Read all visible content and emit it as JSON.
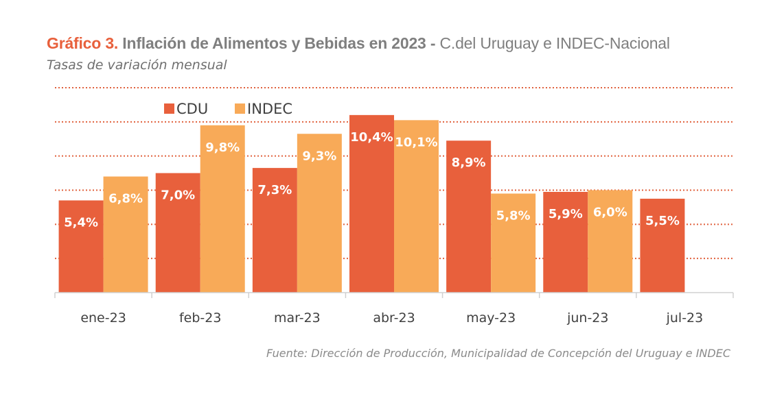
{
  "header": {
    "title_lead": "Gráfico 3.",
    "title_main": " Inflación de Alimentos y Bebidas en 2023 - ",
    "title_rest": "C.del Uruguay e INDEC-Nacional",
    "subtitle": "Tasas de variación mensual"
  },
  "footer": {
    "source": "Fuente: Dirección de Producción, Municipalidad de Concepción del Uruguay e INDEC"
  },
  "colors": {
    "CDU": "#e8603c",
    "INDEC": "#f8aa58",
    "grid": "#e0603c",
    "axis": "#d0d0d0"
  },
  "chart_data": {
    "type": "bar",
    "title": "Gráfico 3. Inflación de Alimentos y Bebidas en 2023 - C.del Uruguay e INDEC-Nacional",
    "subtitle": "Tasas de variación mensual",
    "xlabel": "",
    "ylabel": "",
    "ylim": [
      0,
      12
    ],
    "grid": true,
    "legend": "top-left",
    "categories": [
      "ene-23",
      "feb-23",
      "mar-23",
      "abr-23",
      "may-23",
      "jun-23",
      "jul-23"
    ],
    "series": [
      {
        "name": "CDU",
        "values": [
          5.4,
          7.0,
          7.3,
          10.4,
          8.9,
          5.9,
          5.5
        ],
        "labels": [
          "5,4%",
          "7,0%",
          "7,3%",
          "10,4%",
          "8,9%",
          "5,9%",
          "5,5%"
        ]
      },
      {
        "name": "INDEC",
        "values": [
          6.8,
          9.8,
          9.3,
          10.1,
          5.8,
          6.0,
          null
        ],
        "labels": [
          "6,8%",
          "9,8%",
          "9,3%",
          "10,1%",
          "5,8%",
          "6,0%",
          null
        ]
      }
    ]
  }
}
